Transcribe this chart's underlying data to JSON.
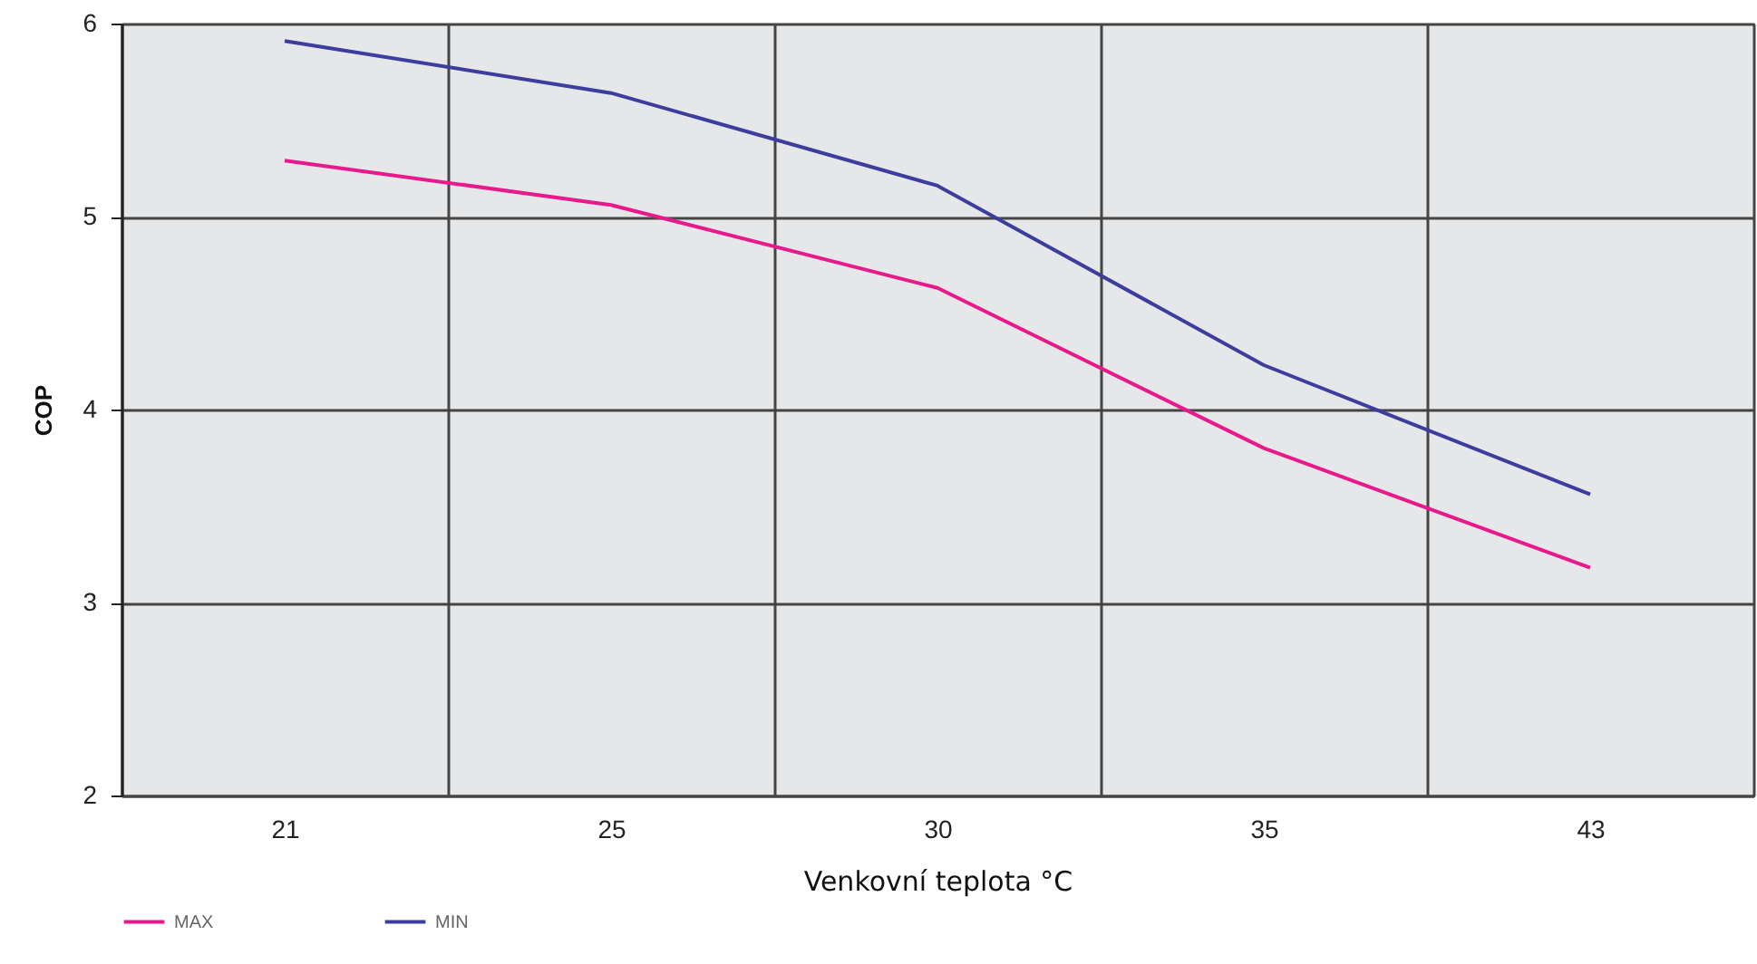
{
  "chart_data": {
    "type": "line",
    "xlabel": "Venkovní teplota °C",
    "ylabel": "COP",
    "categories": [
      "21",
      "25",
      "30",
      "35",
      "43"
    ],
    "series": [
      {
        "name": "MAX",
        "color": "#e8198b",
        "values": [
          5.29,
          5.06,
          4.63,
          3.8,
          3.18
        ]
      },
      {
        "name": "MIN",
        "color": "#3d3d9e",
        "values": [
          5.91,
          5.64,
          5.16,
          4.23,
          3.56
        ]
      }
    ],
    "ylim": [
      2,
      6
    ],
    "yticks": [
      2,
      3,
      4,
      5,
      6
    ],
    "grid": true,
    "legend": "bottom",
    "marker": "none",
    "line_style": "solid"
  }
}
